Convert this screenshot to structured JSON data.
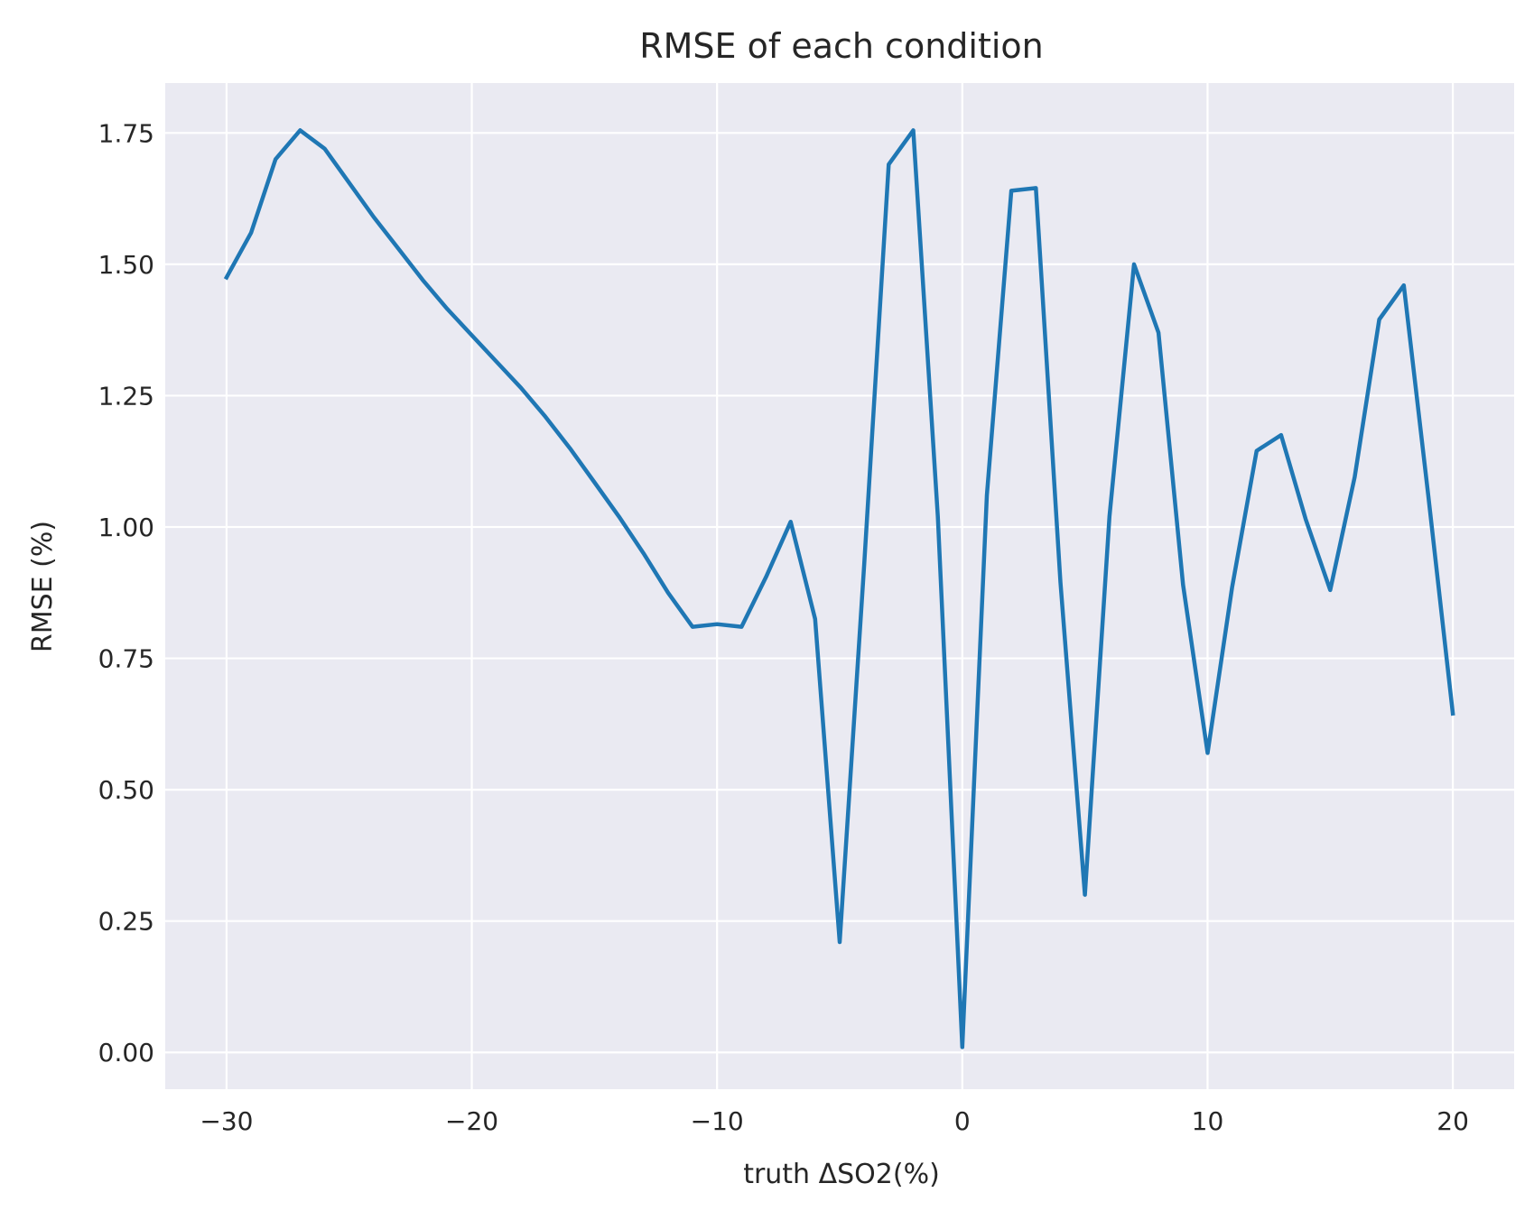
{
  "chart_data": {
    "type": "line",
    "title": "RMSE of each condition",
    "xlabel": "truth ΔSO2(%)",
    "ylabel": "RMSE (%)",
    "xlim": [
      -32.5,
      22.5
    ],
    "ylim": [
      -0.07,
      1.845
    ],
    "xticks": [
      -30,
      -20,
      -10,
      0,
      10,
      20
    ],
    "xtick_labels": [
      "−30",
      "−20",
      "−10",
      "0",
      "10",
      "20"
    ],
    "yticks": [
      0.0,
      0.25,
      0.5,
      0.75,
      1.0,
      1.25,
      1.5,
      1.75
    ],
    "ytick_labels": [
      "0.00",
      "0.25",
      "0.50",
      "0.75",
      "1.00",
      "1.25",
      "1.50",
      "1.75"
    ],
    "grid": true,
    "background": "#eaeaf2",
    "series": [
      {
        "color": "#1f77b4",
        "x": [
          -30,
          -29,
          -28,
          -27,
          -26,
          -25,
          -24,
          -23,
          -22,
          -21,
          -20,
          -19,
          -18,
          -17,
          -16,
          -15,
          -14,
          -13,
          -12,
          -11,
          -10,
          -9,
          -8,
          -7,
          -6,
          -5,
          -4,
          -3,
          -2,
          -1,
          0,
          1,
          2,
          3,
          4,
          5,
          6,
          7,
          8,
          9,
          10,
          11,
          12,
          13,
          14,
          15,
          16,
          17,
          18,
          19,
          20
        ],
        "y": [
          1.475,
          1.56,
          1.7,
          1.755,
          1.72,
          1.655,
          1.59,
          1.53,
          1.47,
          1.415,
          1.365,
          1.315,
          1.265,
          1.21,
          1.15,
          1.085,
          1.02,
          0.95,
          0.875,
          0.81,
          0.815,
          0.81,
          0.905,
          1.01,
          0.825,
          0.21,
          0.93,
          1.69,
          1.755,
          1.02,
          0.01,
          1.06,
          1.64,
          1.645,
          0.895,
          0.3,
          1.02,
          1.5,
          1.37,
          0.89,
          0.57,
          0.885,
          1.145,
          1.175,
          1.015,
          0.88,
          1.095,
          1.395,
          1.46,
          1.06,
          0.645
        ]
      }
    ]
  }
}
